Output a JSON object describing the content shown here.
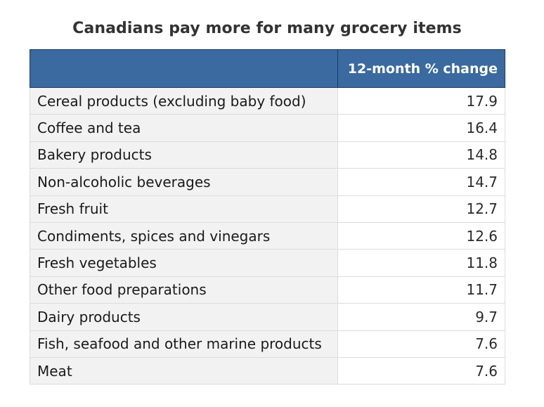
{
  "chart_data": {
    "type": "table",
    "title": "Canadians pay more for many grocery items",
    "columns": [
      "",
      "12-month % change"
    ],
    "rows": [
      {
        "label": "Cereal products (excluding baby food)",
        "value": "17.9"
      },
      {
        "label": "Coffee and tea",
        "value": "16.4"
      },
      {
        "label": "Bakery products",
        "value": "14.8"
      },
      {
        "label": "Non-alcoholic beverages",
        "value": "14.7"
      },
      {
        "label": "Fresh fruit",
        "value": "12.7"
      },
      {
        "label": "Condiments, spices and vinegars",
        "value": "12.6"
      },
      {
        "label": "Fresh vegetables",
        "value": "11.8"
      },
      {
        "label": "Other food preparations",
        "value": "11.7"
      },
      {
        "label": "Dairy products",
        "value": "9.7"
      },
      {
        "label": "Fish, seafood and other marine products",
        "value": "7.6"
      },
      {
        "label": "Meat",
        "value": "7.6"
      }
    ],
    "colors": {
      "header_background": "#3a6a9f",
      "header_text": "#ffffff",
      "label_column_background": "#f2f2f2"
    }
  }
}
